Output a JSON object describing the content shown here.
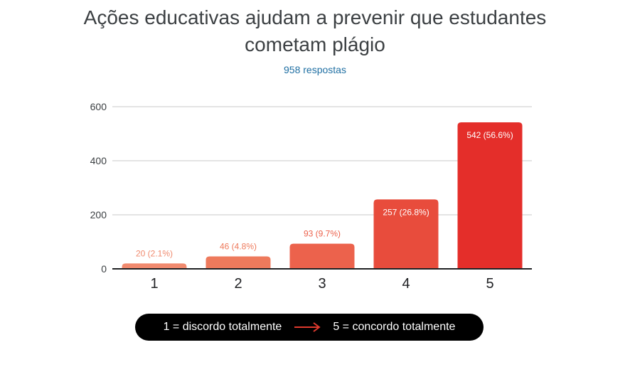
{
  "title_line1": "Ações educativas ajudam a prevenir que estudantes",
  "title_line2": "cometam plágio",
  "subtitle": "958 respostas",
  "legend": {
    "left_text": "1 = discordo totalmente",
    "right_text": "5 = concordo totalmente",
    "arrow_color": "#e03a2e",
    "arrow_icon": "right-arrow-icon"
  },
  "chart_data": {
    "type": "bar",
    "categories": [
      "1",
      "2",
      "3",
      "4",
      "5"
    ],
    "values": [
      20,
      46,
      93,
      257,
      542
    ],
    "data_labels": [
      "20 (2.1%)",
      "46 (4.8%)",
      "93 (9.7%)",
      "257 (26.8%)",
      "542 (56.6%)"
    ],
    "colors": [
      "#f08a6e",
      "#ee7a5c",
      "#ec624c",
      "#e84c3c",
      "#e42e2a"
    ],
    "ylim": [
      0,
      600
    ],
    "yticks": [
      0,
      200,
      400,
      600
    ],
    "grid": true,
    "xlabel": "",
    "ylabel": ""
  }
}
